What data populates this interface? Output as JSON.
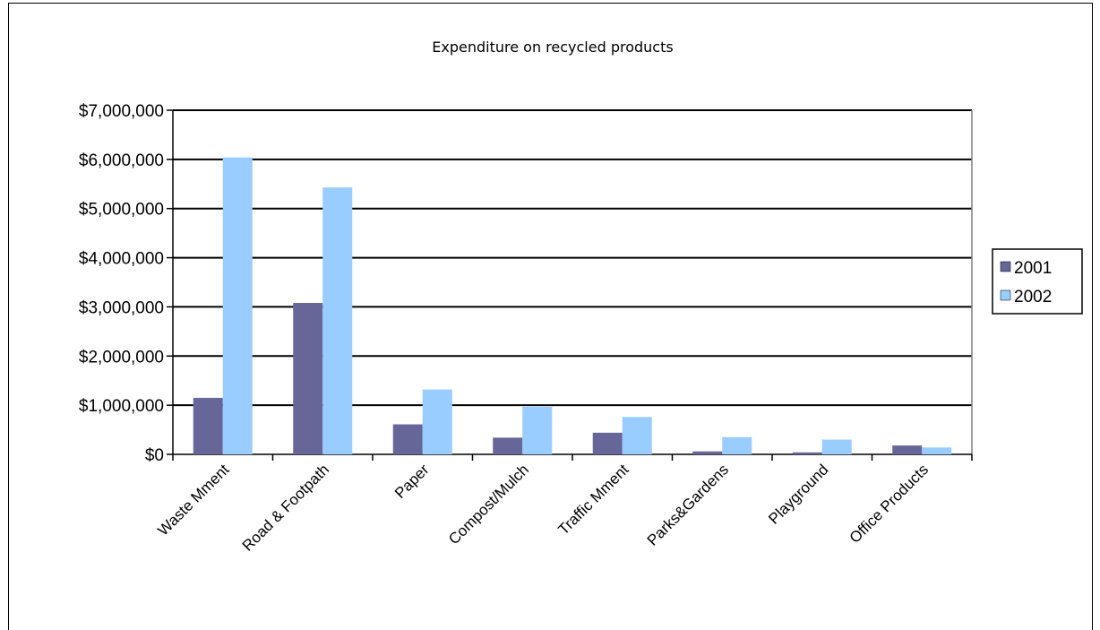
{
  "chart_data": {
    "type": "bar",
    "title": "Expenditure on recycled products",
    "xlabel": "",
    "ylabel": "",
    "categories": [
      "Waste Mment",
      "Road & Footpath",
      "Paper",
      "Compost/Mulch",
      "Traffic Mment",
      "Parks&Gardens",
      "Playground",
      "Office Products"
    ],
    "series": [
      {
        "name": "2001",
        "color": "#666699",
        "values": [
          1150000,
          3080000,
          610000,
          340000,
          440000,
          60000,
          40000,
          180000
        ]
      },
      {
        "name": "2002",
        "color": "#99ccff",
        "values": [
          6040000,
          5430000,
          1320000,
          970000,
          760000,
          350000,
          300000,
          140000
        ]
      }
    ],
    "ylim": [
      0,
      7000000
    ],
    "yticks": [
      0,
      1000000,
      2000000,
      3000000,
      4000000,
      5000000,
      6000000,
      7000000
    ],
    "ytick_labels": [
      "$0",
      "$1,000,000",
      "$2,000,000",
      "$3,000,000",
      "$4,000,000",
      "$5,000,000",
      "$6,000,000",
      "$7,000,000"
    ],
    "grid": true,
    "legend_position": "right"
  }
}
